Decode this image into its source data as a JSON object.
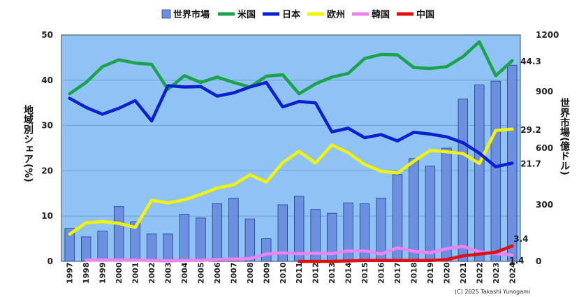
{
  "chart_data": {
    "type": "bar+line",
    "x": [
      "1997",
      "1998",
      "1999",
      "2000",
      "2001",
      "2002",
      "2003",
      "2004",
      "2005",
      "2006",
      "2007",
      "2008",
      "2009",
      "2010",
      "2011",
      "2012",
      "2013",
      "2014",
      "2015",
      "2016",
      "2017",
      "2018",
      "2019",
      "2020",
      "2021",
      "2022",
      "2023",
      "2024"
    ],
    "bars": {
      "name": "世界市場",
      "axis": "right",
      "color": "#6d8fe0",
      "values": [
        175,
        130,
        160,
        290,
        210,
        145,
        145,
        250,
        230,
        305,
        335,
        225,
        120,
        300,
        345,
        275,
        255,
        310,
        305,
        335,
        460,
        545,
        505,
        600,
        860,
        935,
        955,
        1040
      ]
    },
    "series": [
      {
        "name": "米国",
        "color": "#1aa34a",
        "values": [
          37.0,
          39.5,
          43.0,
          44.5,
          43.8,
          43.5,
          38.0,
          41.0,
          39.5,
          40.7,
          39.5,
          38.5,
          40.9,
          41.2,
          37.0,
          39.2,
          40.7,
          41.5,
          44.8,
          45.7,
          45.6,
          42.8,
          42.6,
          43.0,
          45.2,
          48.5,
          41.0,
          44.3
        ]
      },
      {
        "name": "日本",
        "color": "#0a1fcf",
        "values": [
          36.0,
          34.0,
          32.5,
          33.8,
          35.5,
          31.0,
          38.8,
          38.5,
          38.6,
          36.5,
          37.2,
          38.5,
          39.5,
          34.1,
          35.3,
          35.0,
          28.6,
          29.4,
          27.3,
          28.0,
          26.6,
          28.5,
          28.1,
          27.5,
          26.2,
          23.9,
          20.9,
          21.7
        ]
      },
      {
        "name": "欧州",
        "color": "#f2f20a",
        "values": [
          6.0,
          8.5,
          8.8,
          8.4,
          7.5,
          13.5,
          12.9,
          13.6,
          14.8,
          16.2,
          16.9,
          19.1,
          17.5,
          21.8,
          24.3,
          21.7,
          25.7,
          24.0,
          21.4,
          19.9,
          19.5,
          22.1,
          24.5,
          24.2,
          23.8,
          21.6,
          28.9,
          29.2
        ]
      },
      {
        "name": "韓国",
        "color": "#ee82ee",
        "values": [
          null,
          0.3,
          0.3,
          0.3,
          0.3,
          0.2,
          0.1,
          0.2,
          0.2,
          0.4,
          0.5,
          0.6,
          1.6,
          1.9,
          1.7,
          1.8,
          1.7,
          2.3,
          2.3,
          1.6,
          3.0,
          2.2,
          1.9,
          2.8,
          3.3,
          2.1,
          1.7,
          1.4
        ]
      },
      {
        "name": "中国",
        "color": "#e01010",
        "values": [
          null,
          null,
          null,
          null,
          null,
          null,
          null,
          null,
          null,
          null,
          null,
          null,
          null,
          null,
          0.0,
          0.0,
          0.0,
          0.1,
          0.2,
          0.2,
          0.2,
          0.2,
          0.2,
          0.4,
          1.2,
          1.6,
          2.0,
          3.4
        ]
      }
    ],
    "ylim_left": [
      0,
      50
    ],
    "yticks_left": [
      0,
      10,
      20,
      30,
      40,
      50
    ],
    "ylim_right": [
      0,
      1200
    ],
    "yticks_right": [
      0,
      300,
      600,
      900,
      1200
    ],
    "ylabel_left": "地域別シェア(%)",
    "ylabel_right": "世界市場(億ドル)",
    "end_labels": [
      "44.3",
      "29.2",
      "21.7",
      "3.4",
      "1.4"
    ],
    "legend_position": "top",
    "plot_background": "#8fc3f5",
    "grid": true,
    "copyright": "(C) 2025 Takashi Yunogami"
  }
}
